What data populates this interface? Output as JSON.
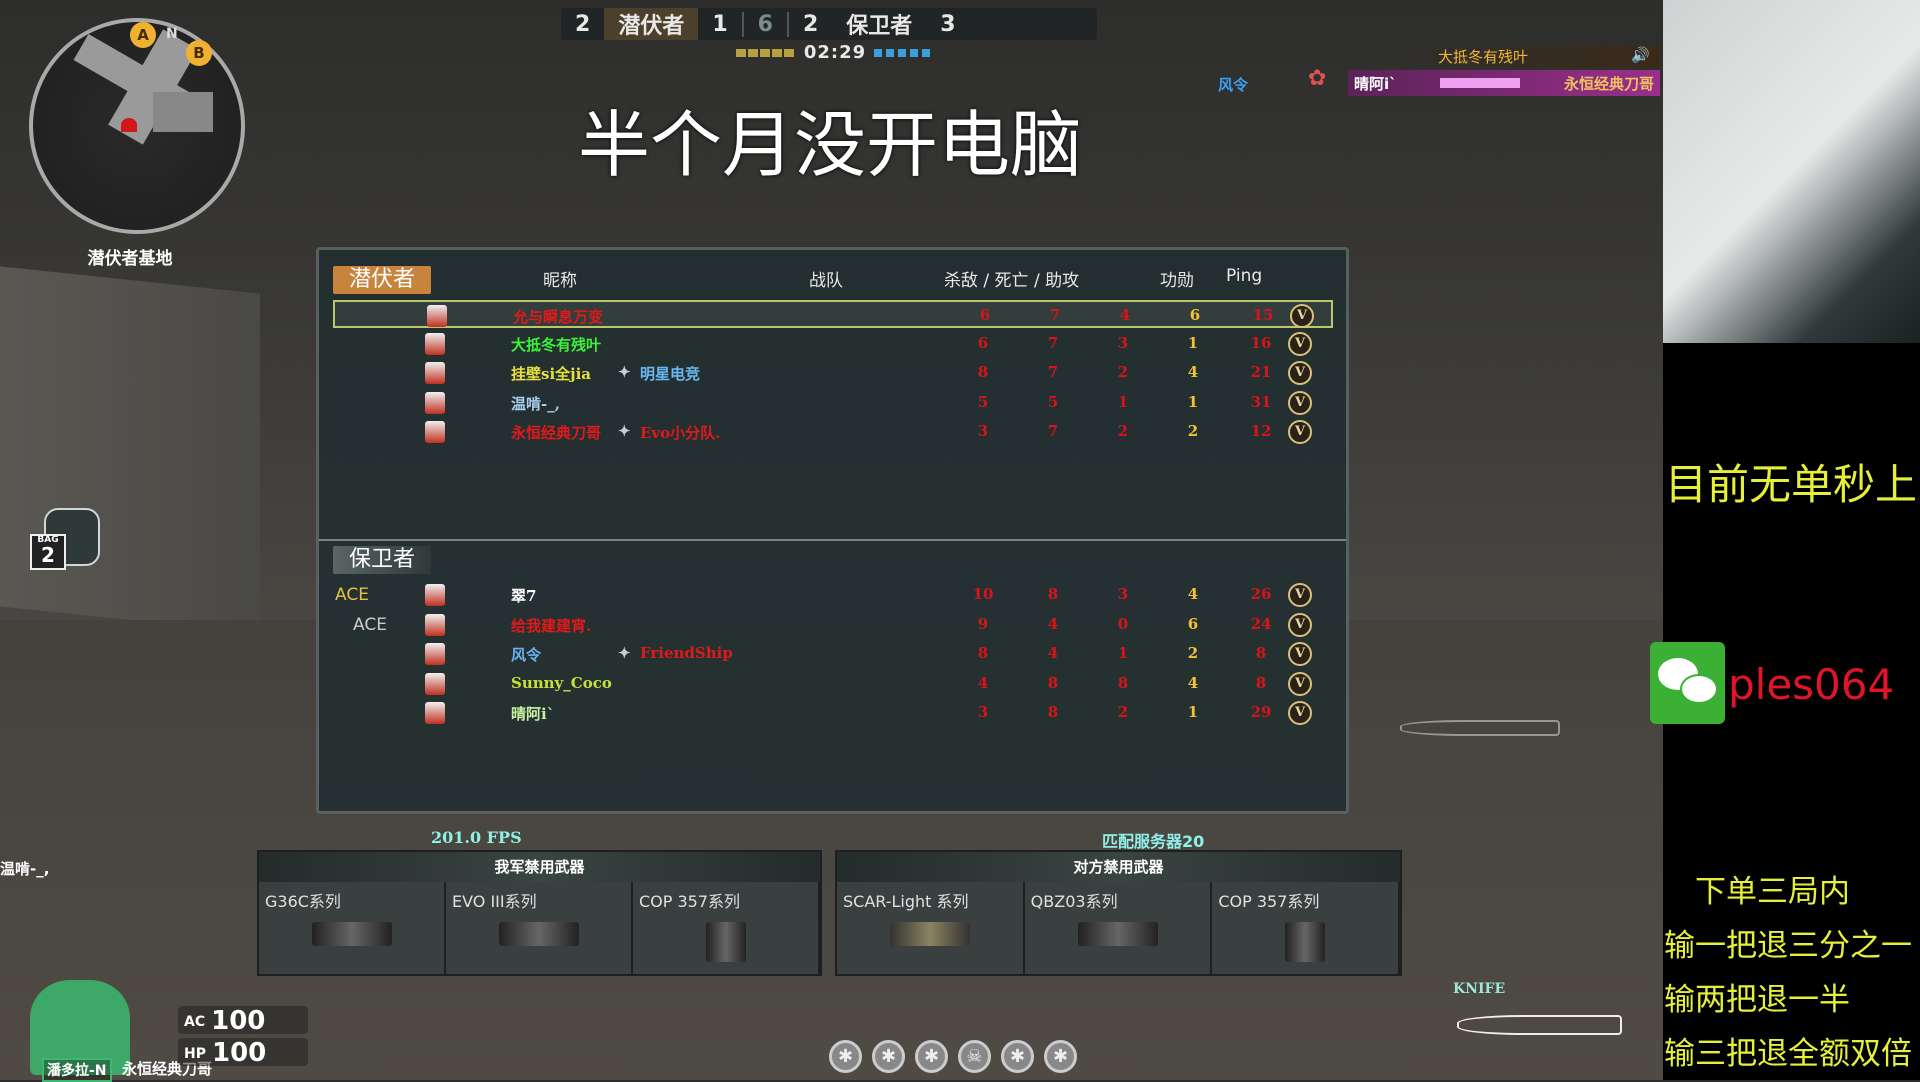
{
  "hud": {
    "score": {
      "t_rounds": "2",
      "t_name": "潜伏者",
      "t_alive": "1",
      "mid": "6",
      "ct_alive": "2",
      "ct_name": "保卫者",
      "ct_rounds": "3"
    },
    "timer": "02:29",
    "map_name": "潜伏者基地",
    "minimap_markers": [
      "A",
      "N",
      "B"
    ],
    "bag_label": "BAG",
    "bag_count": "2",
    "fps": "201.0 FPS",
    "server": "匹配服务器20",
    "armor_label": "AC",
    "armor": "100",
    "hp_label": "HP",
    "hp": "100",
    "character": "潘多拉-N",
    "player_name": "永恒经典刀哥",
    "weapon_label": "KNIFE",
    "left_feed": "温啃-_,",
    "medal_icons": [
      "star",
      "star",
      "star",
      "skull",
      "star",
      "star"
    ]
  },
  "overlay_title": "半个月没开电脑",
  "killfeed": {
    "voice_name": "大抵冬有残叶",
    "left_player": "风令",
    "killer": "晴阿i`",
    "victim": "永恒经典刀哥"
  },
  "scoreboard": {
    "headers": {
      "name": "昵称",
      "team": "战队",
      "kda": "杀敌 / 死亡 / 助攻",
      "merit": "功勋",
      "ping": "Ping"
    },
    "teams": [
      {
        "name": "潜伏者",
        "color": "#c8843e",
        "rows": [
          {
            "ace": "",
            "name": "允与瞬息万变",
            "name_color": "#e01a1a",
            "clan": "",
            "kills": "6",
            "deaths": "7",
            "assists": "4",
            "merit": "6",
            "ping": "15",
            "selected": true
          },
          {
            "ace": "",
            "name": "大抵冬有残叶",
            "name_color": "#3ef03a",
            "clan": "",
            "kills": "6",
            "deaths": "7",
            "assists": "3",
            "merit": "1",
            "ping": "16"
          },
          {
            "ace": "",
            "name": "挂壁si全jia",
            "name_color": "#e8e03a",
            "clan": "明星电竞",
            "clan_color": "#6ab8f0",
            "kills": "8",
            "deaths": "7",
            "assists": "2",
            "merit": "4",
            "ping": "21"
          },
          {
            "ace": "",
            "name": "温啃-_,",
            "name_color": "#a8d0f0",
            "clan": "",
            "kills": "5",
            "deaths": "5",
            "assists": "1",
            "merit": "1",
            "ping": "31"
          },
          {
            "ace": "",
            "name": "永恒经典刀哥",
            "name_color": "#e01a1a",
            "clan": "Evo小分队.",
            "clan_color": "#e01a1a",
            "kills": "3",
            "deaths": "7",
            "assists": "2",
            "merit": "2",
            "ping": "12"
          }
        ]
      },
      {
        "name": "保卫者",
        "color": "#4a5656",
        "rows": [
          {
            "ace": "ACE",
            "gold": true,
            "name": "翠7",
            "name_color": "#ffffff",
            "clan": "",
            "kills": "10",
            "deaths": "8",
            "assists": "3",
            "merit": "4",
            "ping": "26"
          },
          {
            "ace": "ACE",
            "name": "给我建建宵.",
            "name_color": "#e01a1a",
            "clan": "",
            "kills": "9",
            "deaths": "4",
            "assists": "0",
            "merit": "6",
            "ping": "24"
          },
          {
            "ace": "",
            "name": "风令",
            "name_color": "#6ab0f0",
            "clan": "FriendShip",
            "clan_color": "#e01a1a",
            "kills": "8",
            "deaths": "4",
            "assists": "1",
            "merit": "2",
            "ping": "8"
          },
          {
            "ace": "",
            "name": "Sunny_Coco",
            "name_color": "#c8e03a",
            "clan": "",
            "kills": "4",
            "deaths": "8",
            "assists": "8",
            "merit": "4",
            "ping": "8"
          },
          {
            "ace": "",
            "name": "晴阿i`",
            "name_color": "#c8f0a0",
            "clan": "",
            "kills": "3",
            "deaths": "8",
            "assists": "2",
            "merit": "1",
            "ping": "29"
          }
        ]
      }
    ]
  },
  "banned": {
    "ours": {
      "title": "我军禁用武器",
      "items": [
        "G36C系列",
        "EVO III系列",
        "COP 357系列"
      ]
    },
    "theirs": {
      "title": "对方禁用武器",
      "items": [
        "SCAR-Light 系列",
        "QBZ03系列",
        "COP 357系列"
      ]
    }
  },
  "stream": {
    "headline": "目前无单秒上",
    "wechat_id": "ples064",
    "lines": [
      "下单三局内",
      "输一把退三分之一",
      "输两把退一半",
      "输三把退全额双倍"
    ]
  }
}
